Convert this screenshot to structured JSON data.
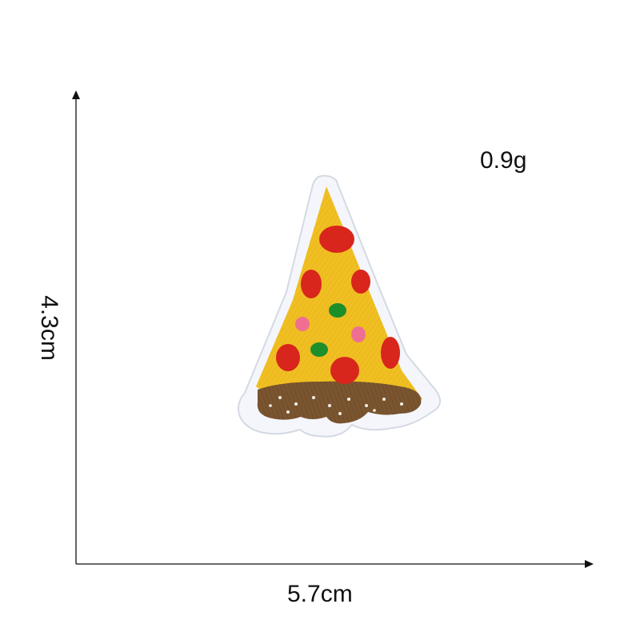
{
  "measurements": {
    "weight": "0.9g",
    "width": "5.7cm",
    "height": "4.3cm"
  },
  "product": {
    "subject": "embroidered pizza slice patch",
    "colors": {
      "backing": "#f4f6fb",
      "backing_edge": "#d4d9e3",
      "cheese": "#f0bf22",
      "cheese_stitch": "#d9a412",
      "pepperoni": "#d8261c",
      "olive": "#1d8f2a",
      "ham": "#ef6f93",
      "crust": "#7a5530",
      "crust_dots": "#f5f0e6"
    }
  },
  "axis_color": "#111111"
}
